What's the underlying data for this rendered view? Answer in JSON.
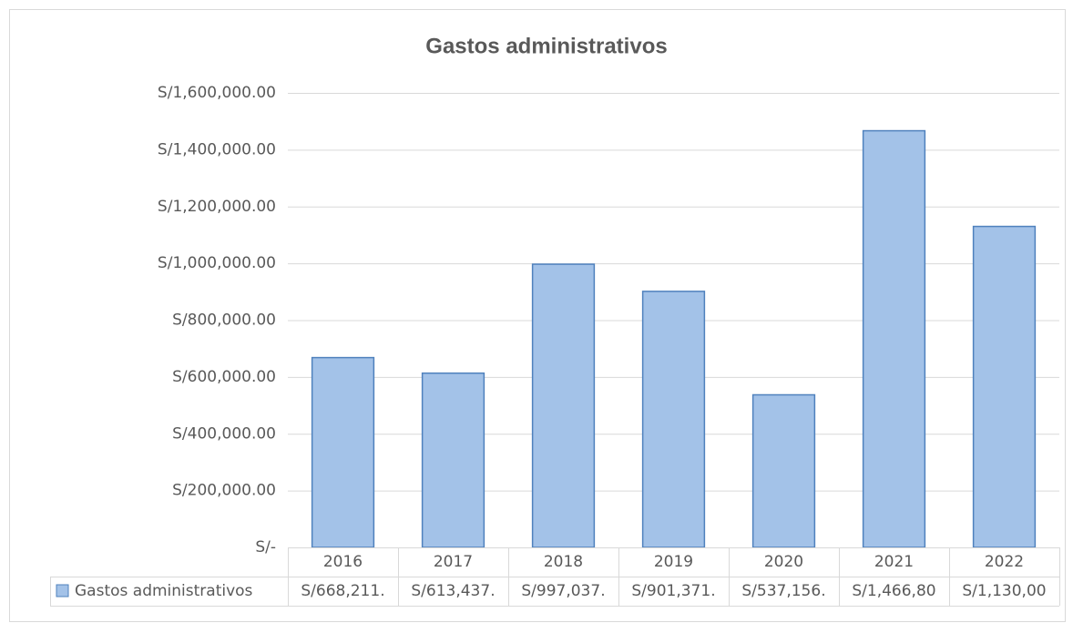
{
  "chart_data": {
    "type": "bar",
    "title": "Gastos administrativos",
    "categories": [
      "2016",
      "2017",
      "2018",
      "2019",
      "2020",
      "2021",
      "2022"
    ],
    "series": [
      {
        "name": "Gastos administrativos",
        "color": "#a3c2e8",
        "values": [
          668211,
          613437,
          997037,
          901371,
          537156,
          1466800,
          1130000
        ],
        "value_labels": [
          "S/668,211.",
          "S/613,437.",
          "S/997,037.",
          "S/901,371.",
          "S/537,156.",
          "S/1,466,80",
          "S/1,130,00"
        ]
      }
    ],
    "ylim": [
      0,
      1600000
    ],
    "yticks": [
      {
        "value": 0,
        "label": "S/-"
      },
      {
        "value": 200000,
        "label": "S/200,000.00"
      },
      {
        "value": 400000,
        "label": "S/400,000.00"
      },
      {
        "value": 600000,
        "label": "S/600,000.00"
      },
      {
        "value": 800000,
        "label": "S/800,000.00"
      },
      {
        "value": 1000000,
        "label": "S/1,000,000.00"
      },
      {
        "value": 1200000,
        "label": "S/1,200,000.00"
      },
      {
        "value": 1400000,
        "label": "S/1,400,000.00"
      },
      {
        "value": 1600000,
        "label": "S/1,600,000.00"
      }
    ],
    "grid": true,
    "data_table": true
  }
}
